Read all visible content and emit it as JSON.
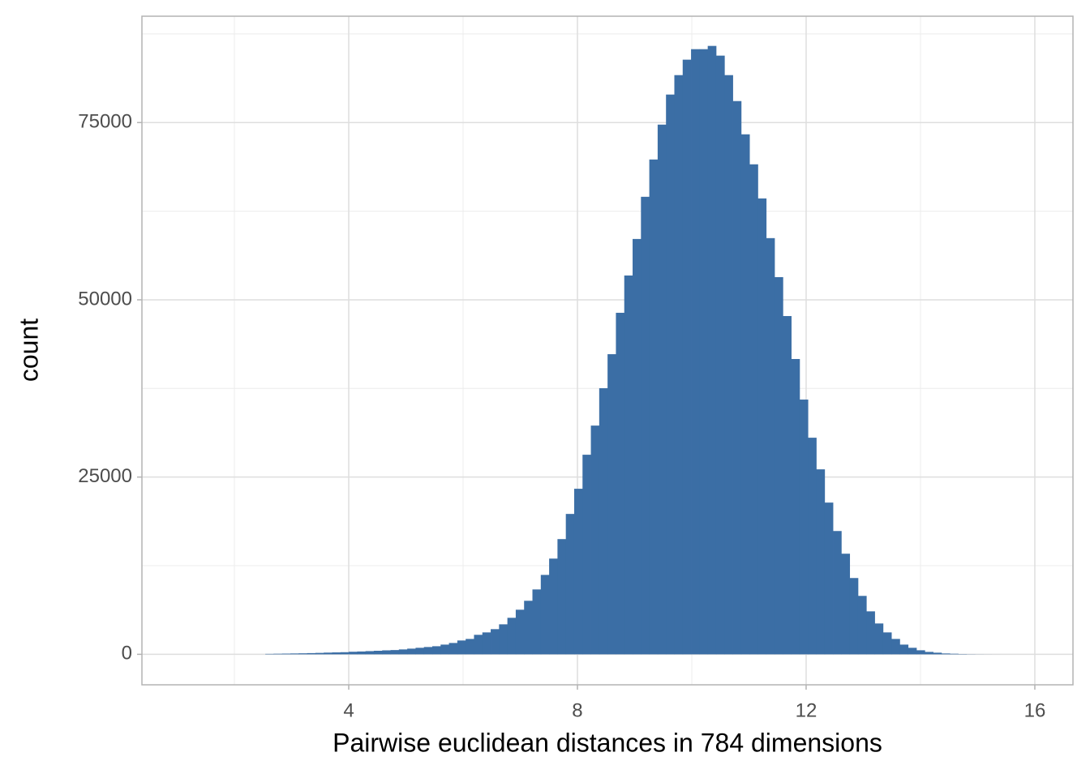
{
  "chart_data": {
    "type": "histogram",
    "x_label": "Pairwise euclidean distances in 784 dimensions",
    "y_label": "count",
    "color": "#3b6ea5",
    "bins": [
      2.541,
      2.687,
      2.833,
      2.979,
      3.125,
      3.271,
      3.417,
      3.563,
      3.709,
      3.855,
      4.001,
      4.147,
      4.293,
      4.439,
      4.585,
      4.731,
      4.877,
      5.023,
      5.169,
      5.315,
      5.461,
      5.607,
      5.753,
      5.899,
      6.045,
      6.191,
      6.337,
      6.483,
      6.629,
      6.775,
      6.921,
      7.067,
      7.213,
      7.359,
      7.505,
      7.651,
      7.797,
      7.943,
      8.089,
      8.235,
      8.381,
      8.527,
      8.673,
      8.819,
      8.965,
      9.111,
      9.257,
      9.403,
      9.549,
      9.695,
      9.841,
      9.987,
      10.133,
      10.279,
      10.425,
      10.571,
      10.717,
      10.863,
      11.009,
      11.155,
      11.301,
      11.447,
      11.593,
      11.739,
      11.885,
      12.031,
      12.177,
      12.323,
      12.469,
      12.615,
      12.761,
      12.907,
      13.053,
      13.199,
      13.345,
      13.491,
      13.637,
      13.783,
      13.929,
      14.075,
      14.221,
      14.367,
      14.513,
      14.659,
      14.805,
      14.951,
      15.097,
      15.243,
      15.389
    ],
    "values": [
      60,
      80,
      100,
      120,
      140,
      170,
      200,
      240,
      270,
      300,
      360,
      400,
      450,
      500,
      560,
      600,
      690,
      800,
      920,
      1030,
      1140,
      1370,
      1600,
      1950,
      2170,
      2750,
      3090,
      3550,
      4230,
      5150,
      6290,
      7550,
      9150,
      11200,
      13500,
      16250,
      19800,
      23350,
      28150,
      32260,
      37530,
      42330,
      48170,
      53430,
      58580,
      64530,
      69790,
      74710,
      78950,
      81690,
      83870,
      85350,
      85350,
      85810,
      84440,
      81690,
      78030,
      73340,
      69110,
      64300,
      58700,
      53200,
      47710,
      41650,
      35930,
      30550,
      26090,
      21400,
      17390,
      14190,
      10760,
      8240,
      6060,
      4350,
      3090,
      2170,
      1370,
      920,
      570,
      340,
      230,
      120,
      80,
      40,
      20,
      10,
      5,
      2
    ],
    "xlim": [
      0.383,
      16.667
    ],
    "ylim": [
      -4300,
      90000
    ],
    "xticks": [
      4,
      8,
      12,
      16
    ],
    "yticks": [
      0,
      25000,
      50000,
      75000
    ],
    "grid": true,
    "minor_grid": true
  }
}
